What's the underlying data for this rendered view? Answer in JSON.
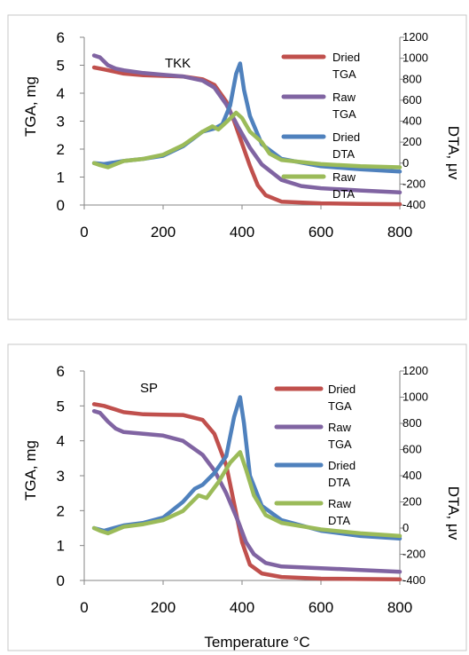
{
  "chart_data": [
    {
      "type": "line",
      "annotation": "TKK",
      "ylabel": "TGA, mg",
      "y2label": "DTA, μv",
      "xlabel": "",
      "xlim": [
        0,
        800
      ],
      "ylim": [
        0,
        6
      ],
      "y2lim": [
        -400,
        1200
      ],
      "xticks": [
        "0",
        "200",
        "400",
        "600",
        "800"
      ],
      "yticks": [
        "0",
        "1",
        "2",
        "3",
        "4",
        "5",
        "6"
      ],
      "y2ticks": [
        "-400",
        "-200",
        "0",
        "200",
        "400",
        "600",
        "800",
        "1000",
        "1200"
      ],
      "legend": [
        "Dried TGA",
        "Raw TGA",
        "Dried DTA",
        "Raw DTA"
      ],
      "series": [
        {
          "name": "Dried TGA",
          "axis": "left",
          "color": "#c0504d",
          "x": [
            25,
            50,
            100,
            150,
            200,
            250,
            300,
            330,
            360,
            380,
            400,
            420,
            440,
            460,
            500,
            600,
            700,
            800
          ],
          "y": [
            4.92,
            4.85,
            4.7,
            4.64,
            4.62,
            4.6,
            4.5,
            4.3,
            3.7,
            3.0,
            2.2,
            1.4,
            0.7,
            0.35,
            0.12,
            0.06,
            0.04,
            0.03
          ]
        },
        {
          "name": "Raw TGA",
          "axis": "left",
          "color": "#8064a2",
          "x": [
            25,
            40,
            60,
            80,
            100,
            150,
            200,
            250,
            300,
            330,
            360,
            390,
            420,
            450,
            500,
            550,
            600,
            700,
            800
          ],
          "y": [
            5.35,
            5.28,
            5.0,
            4.88,
            4.82,
            4.72,
            4.66,
            4.6,
            4.45,
            4.2,
            3.6,
            2.8,
            2.05,
            1.45,
            0.9,
            0.68,
            0.6,
            0.52,
            0.45
          ]
        },
        {
          "name": "Dried DTA",
          "axis": "right",
          "color": "#4f81bd",
          "x": [
            25,
            50,
            100,
            150,
            200,
            250,
            300,
            330,
            350,
            370,
            385,
            395,
            405,
            420,
            450,
            500,
            600,
            700,
            800
          ],
          "y": [
            0,
            -10,
            20,
            40,
            70,
            160,
            300,
            330,
            370,
            550,
            850,
            950,
            700,
            450,
            180,
            40,
            -30,
            -60,
            -80
          ]
        },
        {
          "name": "Raw DTA",
          "axis": "right",
          "color": "#9bbb59",
          "x": [
            25,
            40,
            60,
            100,
            150,
            200,
            250,
            300,
            325,
            340,
            360,
            385,
            400,
            420,
            450,
            470,
            500,
            600,
            700,
            800
          ],
          "y": [
            0,
            -20,
            -40,
            20,
            40,
            80,
            170,
            300,
            350,
            320,
            390,
            480,
            430,
            300,
            200,
            90,
            30,
            -10,
            -30,
            -40
          ]
        }
      ]
    },
    {
      "type": "line",
      "annotation": "SP",
      "ylabel": "TGA, mg",
      "y2label": "DTA, μv",
      "xlabel": "Temperature °C",
      "xlim": [
        0,
        800
      ],
      "ylim": [
        0,
        6
      ],
      "y2lim": [
        -400,
        1200
      ],
      "xticks": [
        "0",
        "200",
        "400",
        "600",
        "800"
      ],
      "yticks": [
        "0",
        "1",
        "2",
        "3",
        "4",
        "5",
        "6"
      ],
      "y2ticks": [
        "-400",
        "-200",
        "0",
        "200",
        "400",
        "600",
        "800",
        "1000",
        "1200"
      ],
      "legend": [
        "Dried TGA",
        "Raw TGA",
        "Dried DTA",
        "Raw DTA"
      ],
      "series": [
        {
          "name": "Dried TGA",
          "axis": "left",
          "color": "#c0504d",
          "x": [
            25,
            50,
            100,
            150,
            200,
            250,
            300,
            330,
            360,
            380,
            400,
            420,
            450,
            500,
            600,
            700,
            800
          ],
          "y": [
            5.05,
            5.0,
            4.82,
            4.76,
            4.75,
            4.74,
            4.6,
            4.2,
            3.3,
            2.2,
            1.1,
            0.45,
            0.2,
            0.1,
            0.05,
            0.04,
            0.03
          ]
        },
        {
          "name": "Raw TGA",
          "axis": "left",
          "color": "#8064a2",
          "x": [
            25,
            40,
            60,
            80,
            100,
            150,
            200,
            250,
            300,
            330,
            360,
            390,
            410,
            430,
            460,
            500,
            600,
            700,
            800
          ],
          "y": [
            4.85,
            4.8,
            4.55,
            4.35,
            4.25,
            4.2,
            4.15,
            4.0,
            3.6,
            3.15,
            2.5,
            1.7,
            1.1,
            0.75,
            0.5,
            0.4,
            0.35,
            0.3,
            0.25
          ]
        },
        {
          "name": "Dried DTA",
          "axis": "right",
          "color": "#4f81bd",
          "x": [
            25,
            50,
            100,
            150,
            200,
            250,
            280,
            300,
            330,
            360,
            380,
            395,
            405,
            420,
            450,
            500,
            600,
            700,
            800
          ],
          "y": [
            0,
            -20,
            20,
            40,
            80,
            200,
            300,
            330,
            420,
            550,
            850,
            1000,
            800,
            400,
            170,
            60,
            -20,
            -60,
            -80
          ]
        },
        {
          "name": "Raw DTA",
          "axis": "right",
          "color": "#9bbb59",
          "x": [
            25,
            40,
            60,
            100,
            150,
            200,
            250,
            290,
            310,
            340,
            370,
            395,
            410,
            430,
            460,
            500,
            600,
            700,
            800
          ],
          "y": [
            0,
            -20,
            -40,
            10,
            30,
            60,
            130,
            250,
            230,
            350,
            500,
            580,
            450,
            250,
            100,
            40,
            -10,
            -40,
            -60
          ]
        }
      ]
    }
  ]
}
